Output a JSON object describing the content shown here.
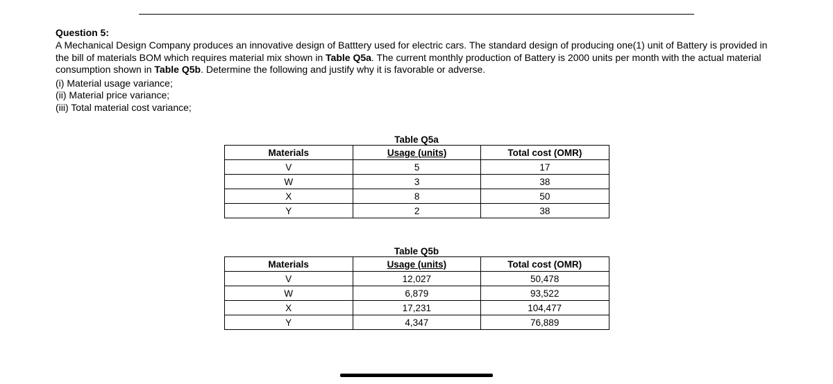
{
  "question": {
    "heading": "Question 5:",
    "body_parts": {
      "p1": "A Mechanical Design Company produces an innovative design of Batttery used for electric cars.  The standard design of producing one(1) unit of Battery is provided in the bill of materials BOM which requires material mix shown in ",
      "b1": "Table Q5a",
      "p2": ". The current monthly production of Battery is 2000 units per month with the actual material consumption shown in ",
      "b2": "Table Q5b",
      "p3": ". Determine the following and justify why it is favorable or adverse."
    },
    "items": {
      "i1": "(i) Material usage variance;",
      "i2": "(ii) Material price variance;",
      "i3": "(iii) Total material cost variance;"
    }
  },
  "table_a": {
    "title": "Table Q5a",
    "headers": {
      "c1": "Materials",
      "c2": "Usage (units)",
      "c3": "Total cost (OMR)"
    },
    "rows": [
      {
        "c1": "V",
        "c2": "5",
        "c3": "17"
      },
      {
        "c1": "W",
        "c2": "3",
        "c3": "38"
      },
      {
        "c1": "X",
        "c2": "8",
        "c3": "50"
      },
      {
        "c1": "Y",
        "c2": "2",
        "c3": "38"
      }
    ]
  },
  "table_b": {
    "title": "Table Q5b",
    "headers": {
      "c1": "Materials",
      "c2": "Usage (units)",
      "c3": "Total cost (OMR)"
    },
    "rows": [
      {
        "c1": "V",
        "c2": "12,027",
        "c3": "50,478"
      },
      {
        "c1": "W",
        "c2": "6,879",
        "c3": "93,522"
      },
      {
        "c1": "X",
        "c2": "17,231",
        "c3": "104,477"
      },
      {
        "c1": "Y",
        "c2": "4,347",
        "c3": "76,889"
      }
    ]
  }
}
